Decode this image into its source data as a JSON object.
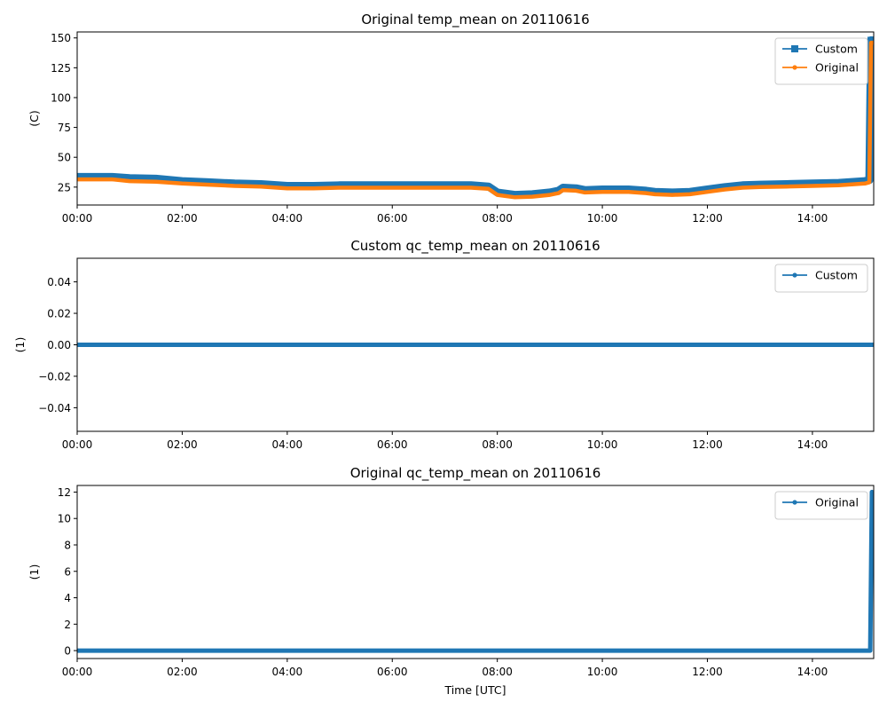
{
  "chart_data": [
    {
      "type": "line",
      "title": "Original temp_mean on 20110616",
      "xlabel": "",
      "ylabel": "(C)",
      "xlim": [
        "00:00",
        "15:10"
      ],
      "ylim": [
        10,
        155
      ],
      "xticks": [
        "00:00",
        "02:00",
        "04:00",
        "06:00",
        "08:00",
        "10:00",
        "12:00",
        "14:00"
      ],
      "yticks": [
        25,
        50,
        75,
        100,
        125,
        150
      ],
      "grid": false,
      "legend": "top-right",
      "series": [
        {
          "name": "Custom",
          "color": "#1f77b4",
          "marker": "square",
          "points": [
            [
              "00:00",
              33.5
            ],
            [
              "00:40",
              33.5
            ],
            [
              "01:00",
              32.5
            ],
            [
              "01:30",
              32
            ],
            [
              "02:00",
              30
            ],
            [
              "02:30",
              29
            ],
            [
              "03:00",
              28
            ],
            [
              "03:30",
              27.5
            ],
            [
              "04:00",
              26
            ],
            [
              "04:30",
              26
            ],
            [
              "05:00",
              26.5
            ],
            [
              "05:30",
              26.5
            ],
            [
              "06:00",
              26.5
            ],
            [
              "06:30",
              26.5
            ],
            [
              "07:00",
              26.5
            ],
            [
              "07:30",
              26.5
            ],
            [
              "07:50",
              25.5
            ],
            [
              "08:00",
              20.5
            ],
            [
              "08:20",
              18.5
            ],
            [
              "08:40",
              19
            ],
            [
              "09:00",
              20.5
            ],
            [
              "09:10",
              22
            ],
            [
              "09:15",
              24.5
            ],
            [
              "09:30",
              24
            ],
            [
              "09:40",
              22.5
            ],
            [
              "10:00",
              23
            ],
            [
              "10:30",
              23
            ],
            [
              "10:50",
              22
            ],
            [
              "11:00",
              21
            ],
            [
              "11:20",
              20.5
            ],
            [
              "11:40",
              21
            ],
            [
              "12:00",
              23
            ],
            [
              "12:20",
              25
            ],
            [
              "12:40",
              26.5
            ],
            [
              "13:00",
              27
            ],
            [
              "13:30",
              27.5
            ],
            [
              "14:00",
              28
            ],
            [
              "14:30",
              28.5
            ],
            [
              "15:00",
              30
            ],
            [
              "15:05",
              31
            ],
            [
              "15:07",
              148
            ],
            [
              "15:10",
              57
            ],
            [
              "15:10",
              148
            ]
          ]
        },
        {
          "name": "Original",
          "color": "#ff7f0e",
          "marker": "dot",
          "points": [
            [
              "00:00",
              31.5
            ],
            [
              "00:40",
              31.5
            ],
            [
              "01:00",
              30
            ],
            [
              "01:30",
              29.5
            ],
            [
              "02:00",
              28
            ],
            [
              "02:30",
              27
            ],
            [
              "03:00",
              26
            ],
            [
              "03:30",
              25.5
            ],
            [
              "04:00",
              24
            ],
            [
              "04:30",
              24
            ],
            [
              "05:00",
              24.5
            ],
            [
              "05:30",
              24.5
            ],
            [
              "06:00",
              24.5
            ],
            [
              "06:30",
              24.5
            ],
            [
              "07:00",
              24.5
            ],
            [
              "07:30",
              24.5
            ],
            [
              "07:50",
              23.5
            ],
            [
              "08:00",
              18.5
            ],
            [
              "08:20",
              16.5
            ],
            [
              "08:40",
              17
            ],
            [
              "09:00",
              18.5
            ],
            [
              "09:10",
              20
            ],
            [
              "09:15",
              22.5
            ],
            [
              "09:30",
              22
            ],
            [
              "09:40",
              20.5
            ],
            [
              "10:00",
              21
            ],
            [
              "10:30",
              21
            ],
            [
              "10:50",
              20
            ],
            [
              "11:00",
              19
            ],
            [
              "11:20",
              18.5
            ],
            [
              "11:40",
              19
            ],
            [
              "12:00",
              21
            ],
            [
              "12:20",
              23
            ],
            [
              "12:40",
              24.5
            ],
            [
              "13:00",
              25
            ],
            [
              "13:30",
              25.5
            ],
            [
              "14:00",
              26
            ],
            [
              "14:30",
              26.5
            ],
            [
              "15:00",
              28
            ],
            [
              "15:05",
              29
            ],
            [
              "15:07",
              146
            ],
            [
              "15:10",
              146
            ]
          ]
        }
      ]
    },
    {
      "type": "line",
      "title": "Custom qc_temp_mean on 20110616",
      "xlabel": "",
      "ylabel": "(1)",
      "xlim": [
        "00:00",
        "15:10"
      ],
      "ylim": [
        -0.055,
        0.055
      ],
      "xticks": [
        "00:00",
        "02:00",
        "04:00",
        "06:00",
        "08:00",
        "10:00",
        "12:00",
        "14:00"
      ],
      "yticks": [
        "−0.04",
        "−0.02",
        "0.00",
        "0.02",
        "0.04"
      ],
      "ytick_values": [
        -0.04,
        -0.02,
        0,
        0.02,
        0.04
      ],
      "grid": false,
      "legend": "top-right",
      "series": [
        {
          "name": "Custom",
          "color": "#1f77b4",
          "marker": "dot",
          "points": [
            [
              "00:00",
              0
            ],
            [
              "15:10",
              0
            ]
          ]
        }
      ]
    },
    {
      "type": "line",
      "title": "Original qc_temp_mean on 20110616",
      "xlabel": "Time [UTC]",
      "ylabel": "(1)",
      "xlim": [
        "00:00",
        "15:10"
      ],
      "ylim": [
        -0.6,
        12.5
      ],
      "xticks": [
        "00:00",
        "02:00",
        "04:00",
        "06:00",
        "08:00",
        "10:00",
        "12:00",
        "14:00"
      ],
      "yticks": [
        0,
        2,
        4,
        6,
        8,
        10,
        12
      ],
      "grid": false,
      "legend": "top-right",
      "series": [
        {
          "name": "Original",
          "color": "#1f77b4",
          "marker": "dot",
          "points": [
            [
              "00:00",
              0
            ],
            [
              "15:06",
              0
            ],
            [
              "15:08",
              12
            ],
            [
              "15:10",
              8
            ]
          ]
        }
      ]
    }
  ]
}
